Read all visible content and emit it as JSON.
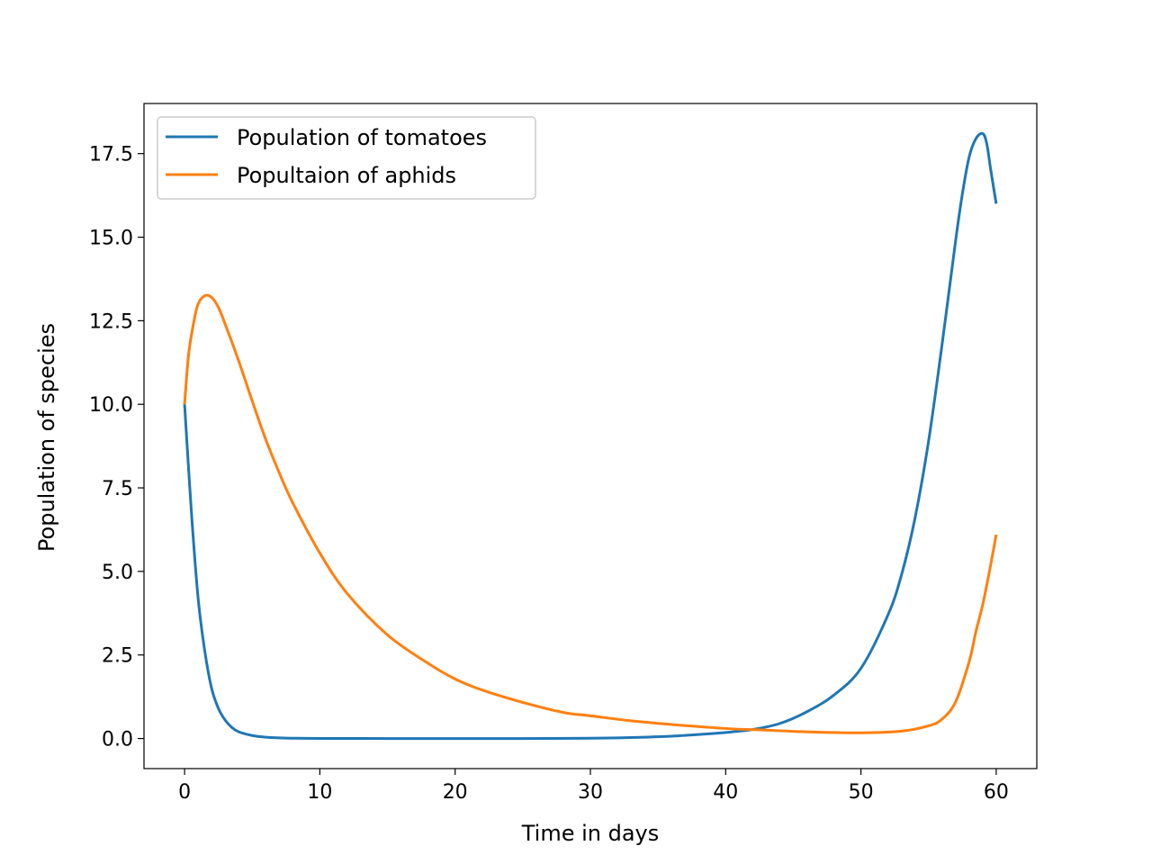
{
  "chart_data": {
    "type": "line",
    "title": "",
    "xlabel": "Time in days",
    "ylabel": "Population of species",
    "xlim": [
      -3,
      63
    ],
    "ylim": [
      -0.9,
      19.0
    ],
    "xticks": [
      0,
      10,
      20,
      30,
      40,
      50,
      60
    ],
    "xtick_labels": [
      "0",
      "10",
      "20",
      "30",
      "40",
      "50",
      "60"
    ],
    "yticks": [
      0.0,
      2.5,
      5.0,
      7.5,
      10.0,
      12.5,
      15.0,
      17.5
    ],
    "ytick_labels": [
      "0.0",
      "2.5",
      "5.0",
      "7.5",
      "10.0",
      "12.5",
      "15.0",
      "17.5"
    ],
    "grid": false,
    "legend_position": "top-left",
    "series": [
      {
        "name": "Population of tomatoes",
        "color": "#1f77b4",
        "x": [
          0,
          0.5,
          1,
          1.5,
          2,
          2.5,
          3,
          3.5,
          4,
          5,
          6,
          7,
          8,
          10,
          15,
          20,
          25,
          30,
          32,
          34,
          36,
          38,
          40,
          42,
          44,
          46,
          48,
          50,
          52,
          53,
          54,
          55,
          56,
          57,
          57.5,
          58,
          58.5,
          59,
          59.3,
          59.6,
          60
        ],
        "y": [
          10.0,
          6.8,
          4.2,
          2.6,
          1.5,
          0.9,
          0.55,
          0.33,
          0.2,
          0.09,
          0.04,
          0.02,
          0.01,
          0.003,
          0.0,
          0.0,
          0.0,
          0.01,
          0.02,
          0.04,
          0.07,
          0.12,
          0.18,
          0.27,
          0.45,
          0.8,
          1.3,
          2.1,
          3.7,
          4.9,
          6.6,
          8.9,
          11.8,
          14.9,
          16.3,
          17.4,
          17.95,
          18.1,
          17.8,
          17.0,
          16.0
        ]
      },
      {
        "name": "Popultaion of aphids",
        "color": "#ff7f0e",
        "x": [
          0,
          0.3,
          0.7,
          1,
          1.5,
          2,
          2.5,
          3,
          4,
          5,
          6,
          7,
          8,
          10,
          12,
          15,
          18,
          20,
          22,
          25,
          28,
          30,
          33,
          36,
          40,
          43,
          46,
          50,
          53,
          55,
          56,
          57,
          58,
          58.5,
          59,
          59.5,
          60
        ],
        "y": [
          10.0,
          11.5,
          12.5,
          13.0,
          13.25,
          13.2,
          12.9,
          12.4,
          11.3,
          10.1,
          8.95,
          7.95,
          7.05,
          5.55,
          4.35,
          3.1,
          2.25,
          1.78,
          1.45,
          1.08,
          0.78,
          0.68,
          0.53,
          0.42,
          0.3,
          0.25,
          0.2,
          0.17,
          0.22,
          0.38,
          0.58,
          1.1,
          2.3,
          3.2,
          4.0,
          5.0,
          6.1
        ]
      }
    ]
  }
}
